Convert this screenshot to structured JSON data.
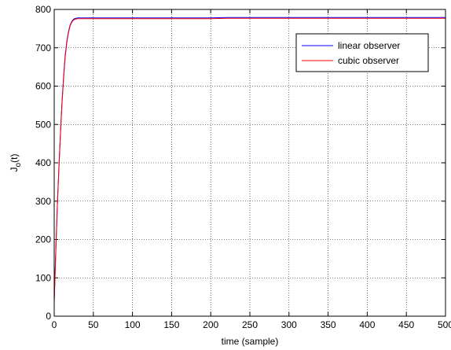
{
  "chart_data": {
    "type": "line",
    "title": "",
    "xlabel": "time (sample)",
    "ylabel": {
      "base": "J",
      "sub": "o",
      "suffix": "(t)"
    },
    "xlim": [
      0,
      500
    ],
    "ylim": [
      0,
      800
    ],
    "xticks": [
      0,
      50,
      100,
      150,
      200,
      250,
      300,
      350,
      400,
      450,
      500
    ],
    "yticks": [
      0,
      100,
      200,
      300,
      400,
      500,
      600,
      700,
      800
    ],
    "grid": true,
    "legend_position": "top-right",
    "series": [
      {
        "name": "linear observer",
        "color": "#0000ff",
        "x": [
          0,
          2,
          4,
          6,
          8,
          10,
          12,
          14,
          16,
          18,
          20,
          22,
          24,
          26,
          28,
          30,
          35,
          40,
          50,
          100,
          200,
          220,
          300,
          400,
          500
        ],
        "y": [
          40,
          170,
          290,
          390,
          480,
          560,
          625,
          680,
          715,
          740,
          757,
          767,
          773,
          776,
          777,
          778,
          778,
          778,
          778,
          778,
          778,
          779,
          779,
          779,
          779
        ]
      },
      {
        "name": "cubic observer",
        "color": "#ff0000",
        "x": [
          0,
          2,
          4,
          6,
          8,
          10,
          12,
          14,
          16,
          18,
          20,
          22,
          24,
          26,
          28,
          30,
          35,
          40,
          50,
          100,
          200,
          220,
          300,
          400,
          500
        ],
        "y": [
          35,
          165,
          285,
          385,
          475,
          555,
          620,
          675,
          712,
          737,
          755,
          765,
          771,
          774,
          775,
          776,
          776,
          776,
          776,
          776,
          776,
          777,
          777,
          777,
          777
        ]
      }
    ]
  }
}
